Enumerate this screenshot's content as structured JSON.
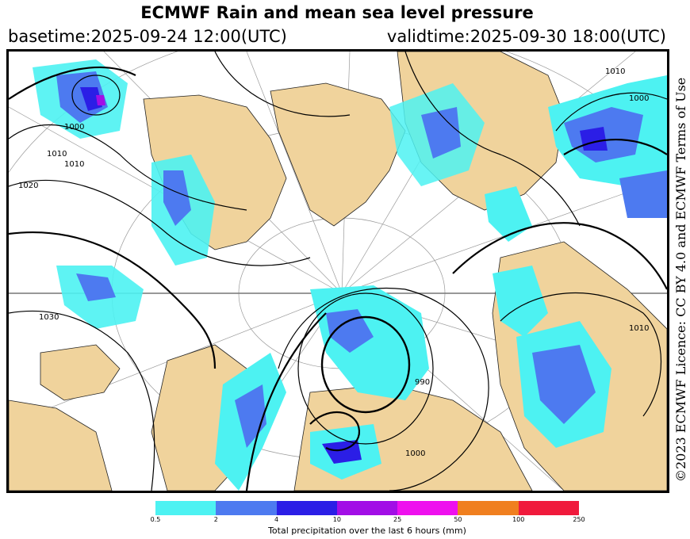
{
  "header": {
    "title": "ECMWF Rain and mean sea level pressure",
    "basetime": "basetime:2025-09-24 12:00(UTC)",
    "validtime": "validtime:2025-09-30 18:00(UTC)"
  },
  "licence": "©2023 ECMWF Licence: CC BY 4.0 and ECMWF Terms of Use",
  "colors": {
    "land": "#f0d39c",
    "sea": "#ffffff",
    "isobar": "#000000"
  },
  "isobar_labels": [
    "1010",
    "1000",
    "1010",
    "1020",
    "1030",
    "1010",
    "1010",
    "990",
    "1000",
    "1000"
  ],
  "legend": {
    "label": "Total precipitation over the last 6 hours (mm)",
    "ticks": [
      "0.5",
      "2",
      "4",
      "10",
      "25",
      "50",
      "100",
      "250"
    ],
    "colors": [
      "#4df2f2",
      "#4d7af0",
      "#2b1ee6",
      "#a20ee6",
      "#ee10ee",
      "#f07f1f",
      "#f01a3c"
    ]
  }
}
